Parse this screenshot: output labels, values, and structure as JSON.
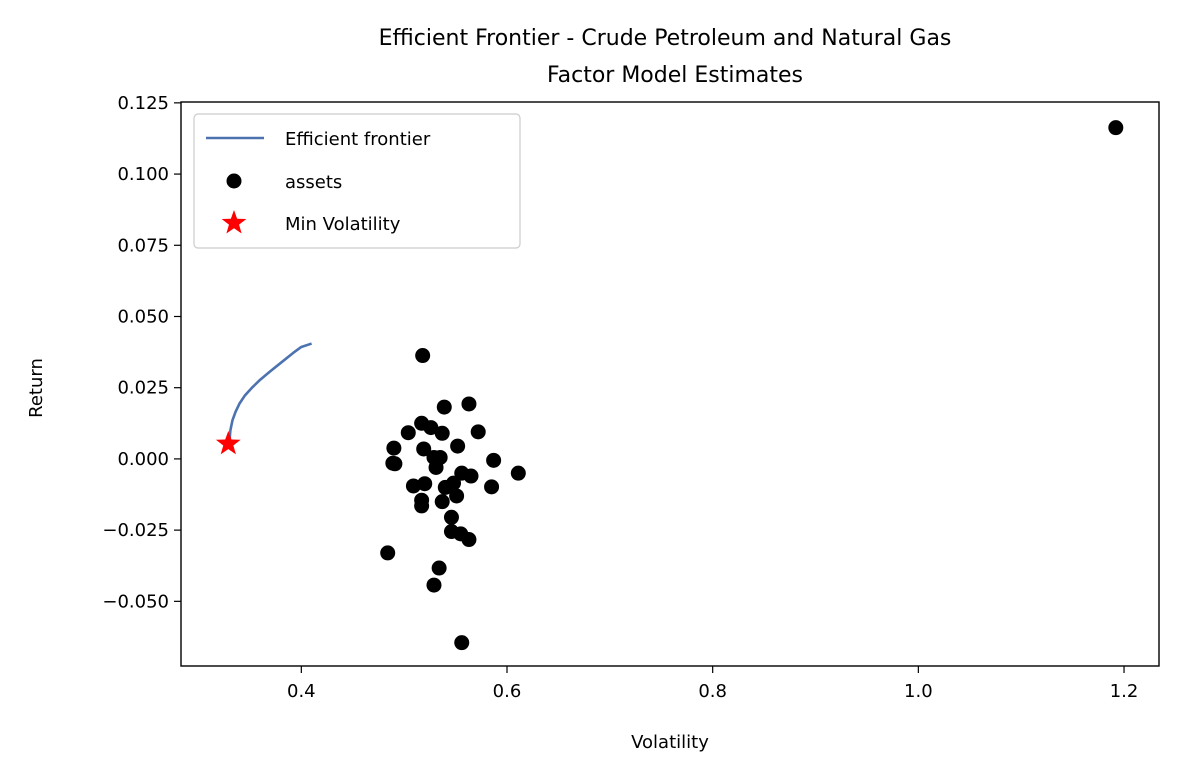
{
  "chart_data": {
    "type": "scatter",
    "title": "Efficient Frontier - Crude Petroleum and Natural Gas",
    "subtitle": "Factor Model Estimates",
    "xlabel": "Volatility",
    "ylabel": "Return",
    "xlim": [
      0.283,
      1.234
    ],
    "ylim": [
      -0.0727,
      0.1253
    ],
    "xticks": [
      0.4,
      0.6,
      0.8,
      1.0,
      1.2
    ],
    "xtick_labels": [
      "0.4",
      "0.6",
      "0.8",
      "1.0",
      "1.2"
    ],
    "yticks": [
      0.125,
      0.1,
      0.075,
      0.05,
      0.025,
      0.0,
      -0.025,
      -0.05
    ],
    "ytick_labels": [
      "0.125",
      "0.100",
      "0.075",
      "0.050",
      "0.025",
      "0.000",
      "−0.025",
      "−0.050"
    ],
    "grid": false,
    "legend_position": "upper-left",
    "legend": [
      "Efficient frontier",
      "assets",
      "Min Volatility"
    ],
    "colors": {
      "frontier": "#4c72b0",
      "assets": "#000000",
      "min_volatility": "#ff0000",
      "axes": "#000000"
    },
    "series": [
      {
        "name": "Efficient frontier",
        "type": "line",
        "points": [
          [
            0.33,
            0.0055
          ],
          [
            0.331,
            0.01
          ],
          [
            0.333,
            0.0135
          ],
          [
            0.336,
            0.0165
          ],
          [
            0.34,
            0.0195
          ],
          [
            0.345,
            0.0222
          ],
          [
            0.352,
            0.025
          ],
          [
            0.36,
            0.0278
          ],
          [
            0.37,
            0.0308
          ],
          [
            0.381,
            0.034
          ],
          [
            0.392,
            0.0372
          ],
          [
            0.4,
            0.0393
          ],
          [
            0.41,
            0.0405
          ]
        ]
      },
      {
        "name": "assets",
        "type": "scatter",
        "points": [
          [
            0.518,
            0.0363
          ],
          [
            0.563,
            0.0193
          ],
          [
            0.539,
            0.0182
          ],
          [
            0.572,
            0.0095
          ],
          [
            0.504,
            0.0092
          ],
          [
            0.517,
            0.0125
          ],
          [
            0.526,
            0.011
          ],
          [
            0.537,
            0.009
          ],
          [
            0.49,
            0.0038
          ],
          [
            0.519,
            0.0035
          ],
          [
            0.552,
            0.0045
          ],
          [
            0.489,
            -0.0015
          ],
          [
            0.491,
            -0.0017
          ],
          [
            0.531,
            -0.003
          ],
          [
            0.535,
            0.0005
          ],
          [
            0.529,
            0.0005
          ],
          [
            0.587,
            -0.0005
          ],
          [
            0.556,
            -0.005
          ],
          [
            0.611,
            -0.005
          ],
          [
            0.565,
            -0.006
          ],
          [
            0.509,
            -0.0095
          ],
          [
            0.52,
            -0.0087
          ],
          [
            0.54,
            -0.01
          ],
          [
            0.548,
            -0.0085
          ],
          [
            0.585,
            -0.0098
          ],
          [
            0.551,
            -0.013
          ],
          [
            0.517,
            -0.0145
          ],
          [
            0.537,
            -0.015
          ],
          [
            0.517,
            -0.0165
          ],
          [
            0.546,
            -0.0205
          ],
          [
            0.546,
            -0.0255
          ],
          [
            0.555,
            -0.0263
          ],
          [
            0.563,
            -0.0283
          ],
          [
            0.484,
            -0.033
          ],
          [
            0.534,
            -0.0383
          ],
          [
            0.529,
            -0.0443
          ],
          [
            0.556,
            -0.0645
          ],
          [
            1.192,
            0.1163
          ]
        ]
      },
      {
        "name": "Min Volatility",
        "type": "marker",
        "points": [
          [
            0.329,
            0.0053
          ]
        ]
      }
    ]
  }
}
